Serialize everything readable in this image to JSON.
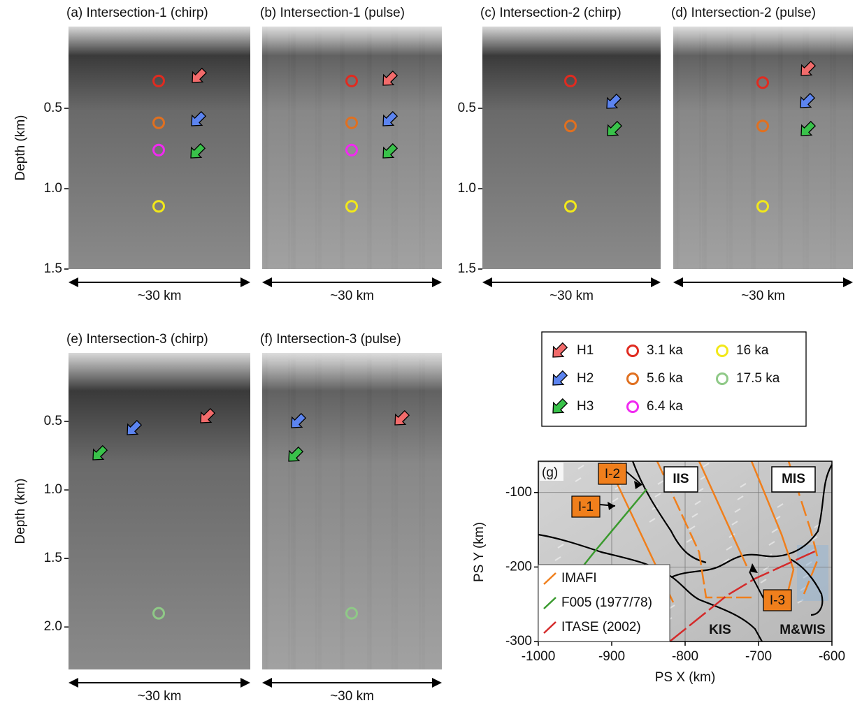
{
  "panels": [
    {
      "title": "(a) Intersection-1 (chirp)",
      "ylabel": "Depth (km)",
      "ylim": [
        0,
        1.5
      ],
      "yticks": [
        {
          "value": 0.5,
          "label": "0.5"
        },
        {
          "value": 1,
          "label": "1.0"
        },
        {
          "value": 1.5,
          "label": "1.5"
        }
      ],
      "width_label": "~30 km",
      "circle_depths": [
        0.33,
        0.59,
        0.76,
        1.11,
        null
      ]
    },
    {
      "title": "(b) Intersection-1 (pulse)",
      "ylim": [
        0,
        1.5
      ],
      "width_label": "~30 km",
      "circle_depths": [
        0.33,
        0.59,
        0.76,
        1.11,
        null
      ]
    },
    {
      "title": "(c) Intersection-2 (chirp)",
      "ylim": [
        0,
        1.5
      ],
      "yticks": [
        {
          "value": 0.5,
          "label": "0.5"
        },
        {
          "value": 1,
          "label": "1.0"
        },
        {
          "value": 1.5,
          "label": "1.5"
        }
      ],
      "width_label": "~30 km",
      "circle_depths": [
        0.33,
        0.61,
        null,
        1.11,
        null
      ]
    },
    {
      "title": "(d) Intersection-2 (pulse)",
      "ylim": [
        0,
        1.5
      ],
      "width_label": "~30 km",
      "circle_depths": [
        0.34,
        0.61,
        null,
        1.11,
        null
      ]
    },
    {
      "title": "(e) Intersection-3 (chirp)",
      "ylabel": "Depth (km)",
      "ylim": [
        0,
        2.31
      ],
      "yticks": [
        {
          "value": 0.5,
          "label": "0.5"
        },
        {
          "value": 1,
          "label": "1.0"
        },
        {
          "value": 1.5,
          "label": "1.5"
        },
        {
          "value": 2,
          "label": "2.0"
        }
      ],
      "width_label": "~30 km",
      "circle_depths": [
        null,
        null,
        null,
        null,
        1.9
      ]
    },
    {
      "title": "(f) Intersection-3 (pulse)",
      "ylim": [
        0,
        2.31
      ],
      "width_label": "~30 km",
      "circle_depths": [
        null,
        null,
        null,
        null,
        1.9
      ]
    }
  ],
  "legend": {
    "horizons": [
      {
        "label": "H1",
        "color": "#f26b6b"
      },
      {
        "label": "H2",
        "color": "#5c84f0"
      },
      {
        "label": "H3",
        "color": "#39c24a"
      }
    ],
    "ages": [
      {
        "label": "3.1 ka",
        "color": "#e02b20"
      },
      {
        "label": "5.6 ka",
        "color": "#e07020"
      },
      {
        "label": "6.4 ka",
        "color": "#f02af0"
      },
      {
        "label": "16 ka",
        "color": "#f2e81a"
      },
      {
        "label": "17.5 ka",
        "color": "#8fc987"
      }
    ]
  },
  "map": {
    "label": "(g)",
    "xlabel": "PS X (km)",
    "ylabel": "PS Y (km)",
    "xlim": [
      -1000,
      -600
    ],
    "ylim": [
      -58,
      -300
    ],
    "xticks": [
      -1000,
      -900,
      -800,
      -700,
      -600
    ],
    "yticks": [
      -100,
      -200,
      -300
    ],
    "regions": [
      "IIS",
      "MIS",
      "KIS",
      "M&WIS"
    ],
    "sections": [
      "I-1",
      "I-2",
      "I-3"
    ],
    "legend": [
      {
        "name": "IMAFI",
        "color": "#f07f1c"
      },
      {
        "name": "F005 (1977/78)",
        "color": "#3a9a2e"
      },
      {
        "name": "ITASE (2002)",
        "color": "#d42a2a"
      }
    ]
  }
}
